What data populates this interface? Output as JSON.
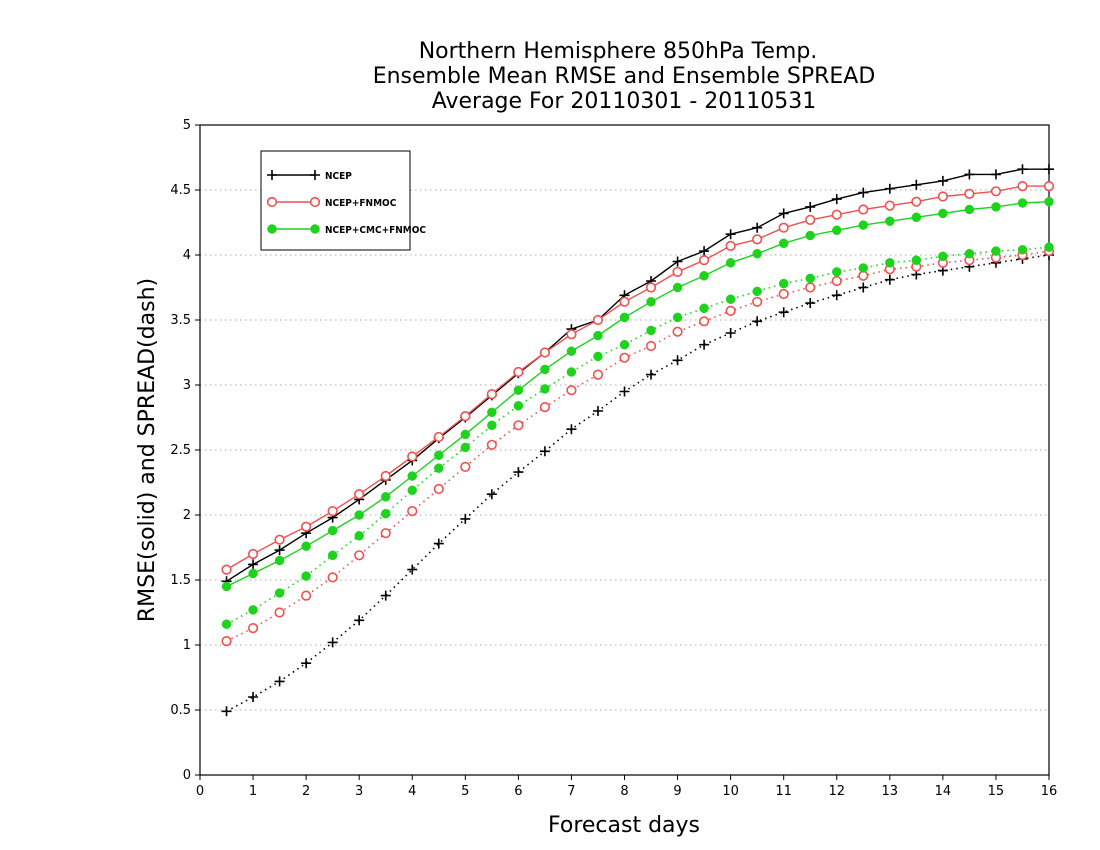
{
  "chart_data": {
    "type": "line",
    "title": [
      "Northern Hemisphere 850hPa Temp.",
      "Ensemble Mean RMSE and Ensemble SPREAD",
      "Average For 20110301 - 20110531"
    ],
    "xlabel": "Forecast days",
    "ylabel": "RMSE(solid) and SPREAD(dash)",
    "xlim": [
      0,
      16
    ],
    "ylim": [
      0,
      5
    ],
    "xticks": [
      "0",
      "1",
      "2",
      "3",
      "4",
      "5",
      "6",
      "7",
      "8",
      "9",
      "10",
      "11",
      "12",
      "13",
      "14",
      "15",
      "16"
    ],
    "yticks": [
      "0",
      "0.5",
      "1",
      "1.5",
      "2",
      "2.5",
      "3",
      "3.5",
      "4",
      "4.5",
      "5"
    ],
    "grid": true,
    "legend_position": "top-left",
    "x": [
      0.5,
      1,
      1.5,
      2,
      2.5,
      3,
      3.5,
      4,
      4.5,
      5,
      5.5,
      6,
      6.5,
      7,
      7.5,
      8,
      8.5,
      9,
      9.5,
      10,
      10.5,
      11,
      11.5,
      12,
      12.5,
      13,
      13.5,
      14,
      14.5,
      15,
      15.5,
      16
    ],
    "series": [
      {
        "name": "NCEP",
        "color": "#000000",
        "marker": "plus",
        "rmse": [
          1.49,
          1.62,
          1.73,
          1.86,
          1.98,
          2.12,
          2.27,
          2.42,
          2.59,
          2.75,
          2.92,
          3.09,
          3.25,
          3.43,
          3.5,
          3.69,
          3.8,
          3.95,
          4.03,
          4.16,
          4.21,
          4.32,
          4.37,
          4.43,
          4.48,
          4.51,
          4.54,
          4.57,
          4.62,
          4.62,
          4.66,
          4.66
        ],
        "spread": [
          0.49,
          0.6,
          0.72,
          0.86,
          1.02,
          1.19,
          1.38,
          1.58,
          1.78,
          1.97,
          2.16,
          2.33,
          2.49,
          2.66,
          2.8,
          2.95,
          3.08,
          3.19,
          3.31,
          3.4,
          3.49,
          3.56,
          3.63,
          3.69,
          3.75,
          3.81,
          3.85,
          3.88,
          3.91,
          3.94,
          3.97,
          4.0
        ]
      },
      {
        "name": "NCEP+FNMOC",
        "color": "#f05050",
        "marker": "open-circle",
        "rmse": [
          1.58,
          1.7,
          1.81,
          1.91,
          2.03,
          2.16,
          2.3,
          2.45,
          2.6,
          2.76,
          2.93,
          3.1,
          3.25,
          3.39,
          3.5,
          3.64,
          3.75,
          3.87,
          3.96,
          4.07,
          4.12,
          4.21,
          4.27,
          4.31,
          4.35,
          4.38,
          4.41,
          4.45,
          4.47,
          4.49,
          4.53,
          4.53
        ],
        "spread": [
          1.03,
          1.13,
          1.25,
          1.38,
          1.52,
          1.69,
          1.86,
          2.03,
          2.2,
          2.37,
          2.54,
          2.69,
          2.83,
          2.96,
          3.08,
          3.21,
          3.3,
          3.41,
          3.49,
          3.57,
          3.64,
          3.7,
          3.75,
          3.8,
          3.84,
          3.89,
          3.91,
          3.94,
          3.96,
          3.98,
          4.0,
          4.03
        ]
      },
      {
        "name": "NCEP+CMC+FNMOC",
        "color": "#1ed21e",
        "marker": "filled-circle",
        "rmse": [
          1.45,
          1.55,
          1.65,
          1.76,
          1.88,
          2.0,
          2.14,
          2.3,
          2.46,
          2.62,
          2.79,
          2.96,
          3.12,
          3.26,
          3.38,
          3.52,
          3.64,
          3.75,
          3.84,
          3.94,
          4.01,
          4.09,
          4.15,
          4.19,
          4.23,
          4.26,
          4.29,
          4.32,
          4.35,
          4.37,
          4.4,
          4.41
        ],
        "spread": [
          1.16,
          1.27,
          1.4,
          1.53,
          1.69,
          1.84,
          2.01,
          2.19,
          2.36,
          2.52,
          2.69,
          2.84,
          2.97,
          3.1,
          3.22,
          3.31,
          3.42,
          3.52,
          3.59,
          3.66,
          3.72,
          3.78,
          3.82,
          3.87,
          3.9,
          3.94,
          3.96,
          3.99,
          4.01,
          4.03,
          4.04,
          4.06
        ]
      }
    ]
  }
}
